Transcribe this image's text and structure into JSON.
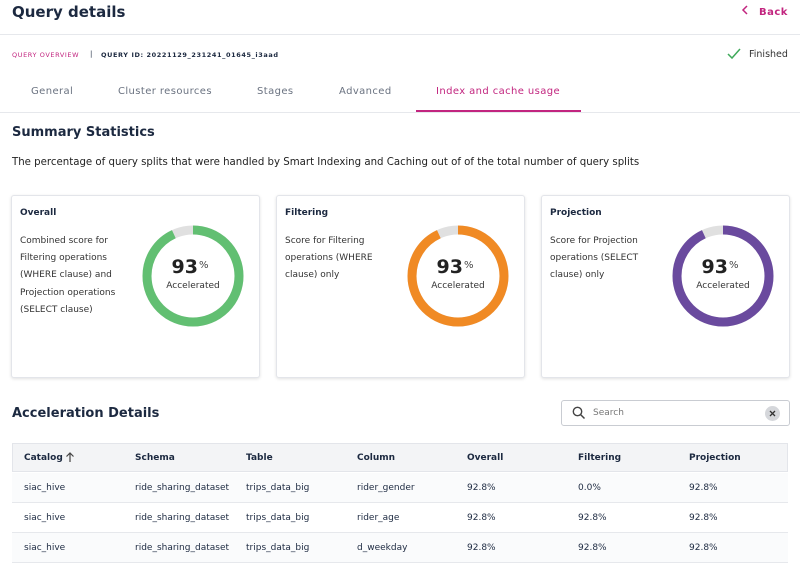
{
  "header": {
    "title": "Query details",
    "back": "Back"
  },
  "breadcrumb": {
    "overview": "QUERY OVERVIEW",
    "separator": "|",
    "query_id": "QUERY ID: 20221129_231241_01645_i3aad",
    "status": "Finished"
  },
  "tabs": {
    "items": [
      "General",
      "Cluster resources",
      "Stages",
      "Advanced",
      "Index and cache usage"
    ],
    "active": 4
  },
  "summary": {
    "title": "Summary Statistics",
    "description": "The percentage of query splits that were handled by Smart Indexing and Caching out of of the total number of query splits",
    "gauge_lim": [
      0,
      100
    ],
    "cards": [
      {
        "title": "Overall",
        "text": "Combined score for Filtering operations (WHERE clause) and Projection operations (SELECT clause)",
        "value": 93,
        "unit": "%",
        "caption": "Accelerated",
        "color": "#62bf72"
      },
      {
        "title": "Filtering",
        "text": "Score for Filtering operations (WHERE clause) only",
        "value": 93,
        "unit": "%",
        "caption": "Accelerated",
        "color": "#f08a24"
      },
      {
        "title": "Projection",
        "text": "Score for Projection operations (SELECT clause) only",
        "value": 93,
        "unit": "%",
        "caption": "Accelerated",
        "color": "#6a4a9e"
      }
    ]
  },
  "details": {
    "title": "Acceleration Details",
    "search": "Search",
    "table": {
      "columns": [
        "Catalog",
        "Schema",
        "Table",
        "Column",
        "Overall",
        "Filtering",
        "Projection"
      ],
      "rows": [
        [
          "siac_hive",
          "ride_sharing_dataset",
          "trips_data_big",
          "rider_gender",
          "92.8%",
          "0.0%",
          "92.8%"
        ],
        [
          "siac_hive",
          "ride_sharing_dataset",
          "trips_data_big",
          "rider_age",
          "92.8%",
          "92.8%",
          "92.8%"
        ],
        [
          "siac_hive",
          "ride_sharing_dataset",
          "trips_data_big",
          "d_weekday",
          "92.8%",
          "92.8%",
          "92.8%"
        ]
      ]
    }
  }
}
